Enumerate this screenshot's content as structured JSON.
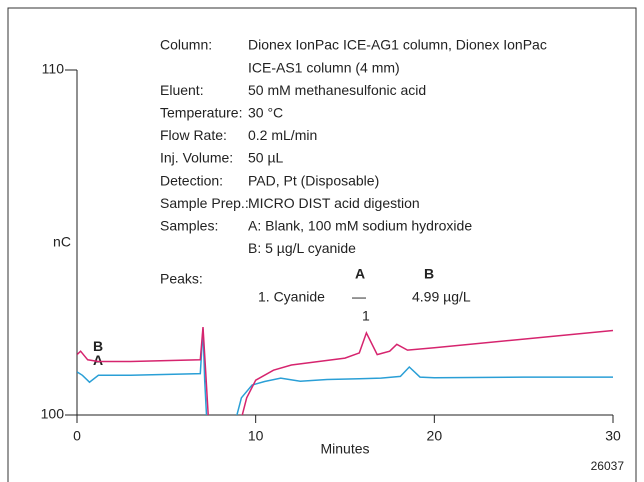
{
  "chart_data": {
    "type": "line",
    "y_label": "nC",
    "x_label": "Minutes",
    "figure_id": "26037",
    "xlim": [
      0,
      30
    ],
    "xticks": [
      0,
      10,
      20,
      30
    ],
    "ylim": [
      100,
      110
    ],
    "yticks": [
      100,
      110
    ],
    "series": [
      {
        "name": "A",
        "color": "#2a9fd6",
        "x": [
          0,
          0.3,
          0.7,
          1.2,
          3,
          6.9,
          7.05,
          7.15,
          7.3,
          8.7,
          9.2,
          9.8,
          10.5,
          11.4,
          12.5,
          14,
          15.8,
          17,
          18.1,
          18.6,
          19.2,
          20,
          25,
          30
        ],
        "values": [
          101.25,
          101.15,
          100.95,
          101.15,
          101.15,
          101.2,
          102.5,
          101.0,
          99.5,
          99.5,
          100.5,
          100.87,
          100.97,
          101.07,
          100.98,
          101.03,
          101.05,
          101.07,
          101.12,
          101.39,
          101.1,
          101.08,
          101.1,
          101.1
        ]
      },
      {
        "name": "B",
        "color": "#d6246e",
        "x": [
          0,
          0.2,
          0.6,
          1.2,
          3,
          6.9,
          7.05,
          7.2,
          7.4,
          9.0,
          9.5,
          10,
          11,
          12,
          15,
          15.8,
          16.2,
          16.8,
          17.5,
          17.9,
          18.5,
          20,
          25,
          30
        ],
        "values": [
          101.75,
          101.85,
          101.6,
          101.55,
          101.55,
          101.6,
          102.55,
          101.3,
          99.5,
          99.5,
          100.5,
          101.01,
          101.3,
          101.45,
          101.65,
          101.8,
          102.38,
          101.75,
          101.85,
          102.05,
          101.88,
          101.95,
          102.2,
          102.45
        ]
      }
    ],
    "conditions": [
      {
        "label": "Column:",
        "value": "Dionex IonPac ICE-AG1 column, Dionex IonPac"
      },
      {
        "value": "ICE-AS1 column (4 mm)"
      },
      {
        "label": "Eluent:",
        "value": "50 mM methanesulfonic acid"
      },
      {
        "label": "Temperature:",
        "value": "30 °C"
      },
      {
        "label": "Flow Rate:",
        "value": "0.2 mL/min"
      },
      {
        "label": "Inj. Volume:",
        "value": "50 µL"
      },
      {
        "label": "Detection:",
        "value": "PAD, Pt (Disposable)"
      },
      {
        "label": "Sample Prep.:",
        "value": "MICRO DIST acid digestion"
      },
      {
        "label": "Samples:",
        "value": "A: Blank, 100 mM sodium hydroxide"
      },
      {
        "value": "B: 5 µg/L cyanide"
      }
    ],
    "peaks": {
      "label": "Peaks:",
      "col_a": "A",
      "col_b": "B",
      "name": "1. Cyanide",
      "a_value": "—",
      "b_value": "4.99 µg/L",
      "peak_number": "1"
    }
  }
}
